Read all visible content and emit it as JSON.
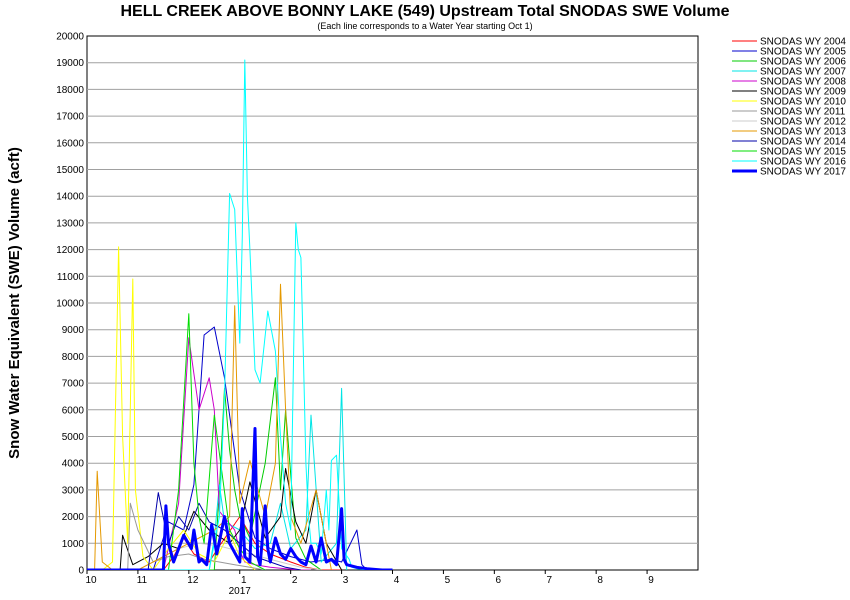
{
  "chart_data": {
    "type": "line",
    "title": "HELL CREEK ABOVE BONNY LAKE (549) Upstream Total SNODAS SWE Volume",
    "subtitle": "(Each line corresponds to a Water Year starting Oct 1)",
    "ylabel": "Snow Water Equivalent (SWE) Volume (acft)",
    "xlabel": "",
    "x_year_label": "2017",
    "x_ticks": [
      "10",
      "11",
      "12",
      "1",
      "2",
      "3",
      "4",
      "5",
      "6",
      "7",
      "8",
      "9"
    ],
    "x_range_months": [
      0,
      12
    ],
    "ylim": [
      0,
      20000
    ],
    "y_ticks": [
      0,
      1000,
      2000,
      3000,
      4000,
      5000,
      6000,
      7000,
      8000,
      9000,
      10000,
      11000,
      12000,
      13000,
      14000,
      15000,
      16000,
      17000,
      18000,
      19000,
      20000
    ],
    "grid": true,
    "legend_position": "right",
    "series": [
      {
        "name": "SNODAS WY 2004",
        "color": "#ff0000",
        "x": [
          0,
          1.5,
          1.7,
          1.9,
          2.1,
          2.4,
          2.6,
          3.0,
          3.3,
          3.6,
          4.0,
          4.3,
          4.6,
          5.0
        ],
        "y": [
          0,
          0,
          500,
          1200,
          600,
          300,
          900,
          2000,
          1000,
          600,
          300,
          100,
          0,
          0
        ]
      },
      {
        "name": "SNODAS WY 2005",
        "color": "#0000cc",
        "x": [
          0,
          1.3,
          1.6,
          1.9,
          2.1,
          2.3,
          2.5,
          2.7,
          3.0,
          3.3,
          3.6,
          4.0,
          4.4,
          4.8,
          5.0,
          5.3,
          5.4,
          5.5
        ],
        "y": [
          0,
          0,
          1800,
          1500,
          3200,
          8800,
          9100,
          7200,
          3000,
          1200,
          800,
          500,
          300,
          400,
          300,
          1500,
          200,
          0
        ]
      },
      {
        "name": "SNODAS WY 2006",
        "color": "#00cc00",
        "x": [
          0,
          2.5,
          2.6,
          2.7,
          2.8,
          2.9,
          3.0,
          3.2,
          3.5,
          3.7,
          3.8,
          3.9,
          4.1,
          4.3,
          4.6
        ],
        "y": [
          0,
          0,
          3000,
          6800,
          4500,
          3000,
          2000,
          1200,
          4000,
          7200,
          3000,
          6000,
          1200,
          400,
          0
        ]
      },
      {
        "name": "SNODAS WY 2007",
        "color": "#00e5e5",
        "x": [
          0,
          1.3,
          2.4,
          2.5,
          2.6,
          2.7,
          3.0,
          3.3,
          3.6,
          3.8,
          4.0,
          4.3,
          4.4,
          4.6,
          4.9,
          5.0,
          5.1
        ],
        "y": [
          0,
          0,
          0,
          1200,
          3200,
          1800,
          1500,
          800,
          1000,
          2500,
          800,
          1500,
          5800,
          300,
          1000,
          6800,
          0
        ]
      },
      {
        "name": "SNODAS WY 2008",
        "color": "#cc00cc",
        "x": [
          0,
          1.5,
          1.8,
          2.0,
          2.2,
          2.4,
          2.5,
          2.6,
          2.9,
          3.0,
          3.1,
          3.3,
          3.6,
          3.9,
          4.2,
          4.4
        ],
        "y": [
          0,
          0,
          2500,
          8700,
          6000,
          7200,
          6000,
          2200,
          1500,
          700,
          300,
          200,
          100,
          50,
          0,
          0
        ]
      },
      {
        "name": "SNODAS WY 2009",
        "color": "#000000",
        "x": [
          0,
          0.65,
          0.7,
          0.9,
          1.2,
          1.5,
          1.8,
          2.1,
          2.4,
          2.8,
          3.0,
          3.2,
          3.5,
          3.8,
          3.9,
          4.1,
          4.3,
          4.5,
          4.7,
          5.0
        ],
        "y": [
          0,
          0,
          1300,
          200,
          500,
          1000,
          800,
          2200,
          1500,
          1000,
          1500,
          3300,
          1200,
          2000,
          3800,
          1800,
          1000,
          3000,
          1000,
          0
        ]
      },
      {
        "name": "SNODAS WY 2010",
        "color": "#ffff00",
        "x": [
          0,
          0.3,
          0.5,
          0.62,
          0.7,
          0.8,
          0.9,
          0.95,
          1.1,
          1.3,
          1.6,
          1.9,
          2.2,
          2.5,
          2.8,
          3.0,
          3.3
        ],
        "y": [
          0,
          0,
          300,
          12100,
          5000,
          1000,
          10900,
          3000,
          500,
          0,
          800,
          1500,
          600,
          300,
          1400,
          500,
          0
        ]
      },
      {
        "name": "SNODAS WY 2011",
        "color": "#999999",
        "x": [
          0,
          0.8,
          0.85,
          1.0,
          1.3,
          1.6,
          2.0,
          2.3,
          2.6,
          2.9,
          3.2,
          3.5
        ],
        "y": [
          0,
          0,
          2500,
          1500,
          300,
          500,
          600,
          400,
          300,
          200,
          100,
          0
        ]
      },
      {
        "name": "SNODAS WY 2012",
        "color": "#cccccc",
        "x": [
          0,
          1.0,
          1.4,
          1.8,
          2.2,
          2.6,
          3.0,
          3.4,
          3.8,
          4.2,
          4.6
        ],
        "y": [
          0,
          0,
          400,
          800,
          1000,
          900,
          700,
          500,
          300,
          100,
          0
        ]
      },
      {
        "name": "SNODAS WY 2013",
        "color": "#e59900",
        "x": [
          0,
          0.15,
          0.2,
          0.3,
          0.5,
          1.0,
          1.5,
          2.0,
          2.5,
          2.8,
          2.9,
          3.0,
          3.2,
          3.5,
          3.7,
          3.8,
          3.9,
          4.0,
          4.2,
          4.5,
          4.8
        ],
        "y": [
          0,
          0,
          3700,
          300,
          0,
          0,
          500,
          1000,
          1500,
          2000,
          9900,
          2500,
          4100,
          2000,
          4000,
          10700,
          6000,
          2000,
          1000,
          3000,
          0
        ]
      },
      {
        "name": "SNODAS WY 2014",
        "color": "#0000aa",
        "x": [
          0,
          1.2,
          1.4,
          1.6,
          1.8,
          2.0,
          2.2,
          2.4,
          2.7,
          3.0,
          3.3,
          3.6,
          3.9,
          4.2
        ],
        "y": [
          0,
          0,
          2900,
          1000,
          2000,
          1500,
          2500,
          1800,
          1500,
          1000,
          500,
          300,
          100,
          0
        ]
      },
      {
        "name": "SNODAS WY 2015",
        "color": "#00dd00",
        "x": [
          0,
          1.6,
          1.8,
          2.0,
          2.1,
          2.2,
          2.3,
          2.5,
          2.8,
          3.0,
          3.2,
          3.5
        ],
        "y": [
          0,
          0,
          3000,
          9600,
          4000,
          2000,
          1000,
          5800,
          1500,
          800,
          300,
          0
        ]
      },
      {
        "name": "SNODAS WY 2016",
        "color": "#00ffff",
        "x": [
          0,
          2.4,
          2.6,
          2.7,
          2.8,
          2.9,
          3.0,
          3.05,
          3.1,
          3.15,
          3.2,
          3.3,
          3.4,
          3.55,
          3.7,
          3.8,
          3.9,
          4.0,
          4.1,
          4.15,
          4.2,
          4.25,
          4.3,
          4.35,
          4.4,
          4.5,
          4.6,
          4.7,
          4.75,
          4.8,
          4.9,
          5.0,
          5.15,
          5.2,
          5.3,
          5.5
        ],
        "y": [
          0,
          0,
          2000,
          6500,
          14100,
          13500,
          8500,
          12500,
          19100,
          14000,
          12000,
          7500,
          7000,
          9700,
          8200,
          5000,
          2500,
          1500,
          13000,
          12000,
          11700,
          8000,
          4000,
          2000,
          1000,
          1000,
          600,
          3000,
          1500,
          4100,
          4300,
          800,
          400,
          100,
          50,
          0
        ]
      },
      {
        "name": "SNODAS WY 2017",
        "color": "#0000ff",
        "thick": true,
        "x": [
          0,
          1.2,
          1.5,
          1.55,
          1.6,
          1.7,
          1.9,
          2.05,
          2.1,
          2.2,
          2.25,
          2.35,
          2.45,
          2.55,
          2.7,
          2.8,
          3.0,
          3.05,
          3.1,
          3.2,
          3.3,
          3.35,
          3.4,
          3.5,
          3.55,
          3.6,
          3.7,
          3.8,
          3.9,
          4.0,
          4.1,
          4.2,
          4.3,
          4.4,
          4.5,
          4.6,
          4.7,
          4.8,
          4.9,
          5.0,
          5.05,
          5.1,
          5.3,
          5.5,
          5.8,
          6.0
        ],
        "y": [
          0,
          0,
          0,
          2400,
          1000,
          300,
          1300,
          800,
          1500,
          300,
          400,
          200,
          1700,
          600,
          2000,
          1000,
          300,
          2300,
          500,
          300,
          5300,
          500,
          200,
          2400,
          800,
          300,
          1200,
          600,
          400,
          800,
          500,
          300,
          200,
          900,
          300,
          1200,
          300,
          400,
          200,
          2300,
          400,
          200,
          100,
          50,
          0,
          0
        ]
      }
    ]
  }
}
